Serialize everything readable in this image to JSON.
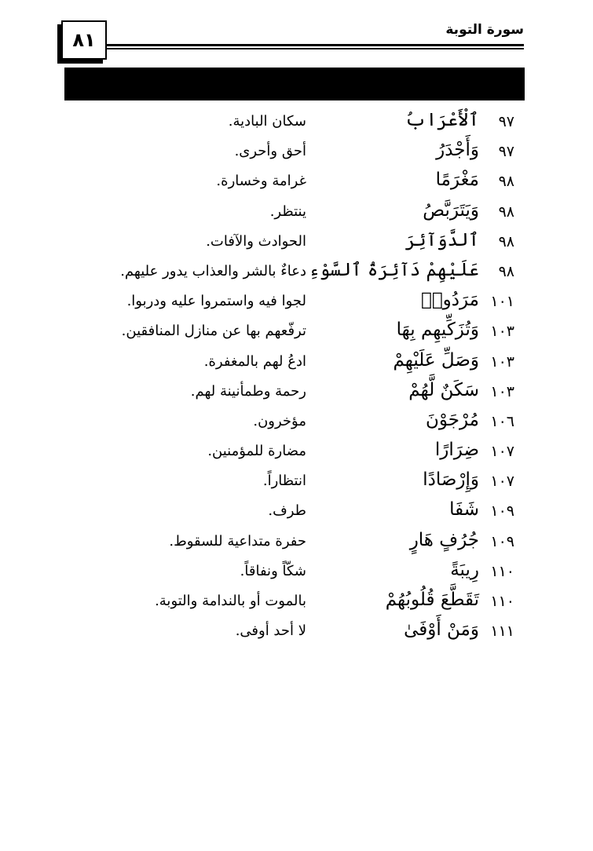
{
  "header": {
    "page_number": "٨١",
    "surah_title": "سورة التوبة"
  },
  "rows": [
    {
      "verse": "٩٧",
      "word": "ٱلْأَعْرَابُ",
      "meaning": "سكان البادية."
    },
    {
      "verse": "٩٧",
      "word": "وَأَجْدَرُ",
      "meaning": "أحق وأحرى."
    },
    {
      "verse": "٩٨",
      "word": "مَغْرَمًا",
      "meaning": "غرامة وخسارة."
    },
    {
      "verse": "٩٨",
      "word": "وَيَتَرَبَّصُ",
      "meaning": "ينتظر."
    },
    {
      "verse": "٩٨",
      "word": "ٱلدَّوَآئِرَ",
      "meaning": "الحوادث والآفات."
    },
    {
      "verse": "٩٨",
      "word": "عَلَيْهِمْ دَآئِرَةُ ٱلسَّوْءِ",
      "meaning": "دعاءٌ بالشر والعذاب يدور عليهم."
    },
    {
      "verse": "١٠١",
      "word": "مَرَدُوا۟",
      "meaning": "لجوا فيه واستمروا عليه ودربوا."
    },
    {
      "verse": "١٠٣",
      "word": "وَتُزَكِّيهِم بِهَا",
      "meaning": "ترفّعهم بها عن منازل المنافقين."
    },
    {
      "verse": "١٠٣",
      "word": "وَصَلِّ عَلَيْهِمْ",
      "meaning": "ادعُ لهم بالمغفرة."
    },
    {
      "verse": "١٠٣",
      "word": "سَكَنٌ لَّهُمْ",
      "meaning": "رحمة وطمأنينة لهم."
    },
    {
      "verse": "١٠٦",
      "word": "مُرْجَوْنَ",
      "meaning": "مؤخرون."
    },
    {
      "verse": "١٠٧",
      "word": "ضِرَارًا",
      "meaning": "مضارة للمؤمنين."
    },
    {
      "verse": "١٠٧",
      "word": "وَإِرْصَادًا",
      "meaning": "انتظاراً."
    },
    {
      "verse": "١٠٩",
      "word": "شَفَا",
      "meaning": "طرف."
    },
    {
      "verse": "١٠٩",
      "word": "جُرُفٍ هَارٍ",
      "meaning": "حفرة متداعية للسقوط."
    },
    {
      "verse": "١١٠",
      "word": "رِيبَةً",
      "meaning": "شكّاً ونفاقاً."
    },
    {
      "verse": "١١٠",
      "word": "تَقَطَّعَ قُلُوبُهُمْ",
      "meaning": "بالموت أو بالندامة والتوبة."
    },
    {
      "verse": "١١١",
      "word": "وَمَنْ أَوْفَىٰ",
      "meaning": "لا أحد أوفى."
    }
  ]
}
